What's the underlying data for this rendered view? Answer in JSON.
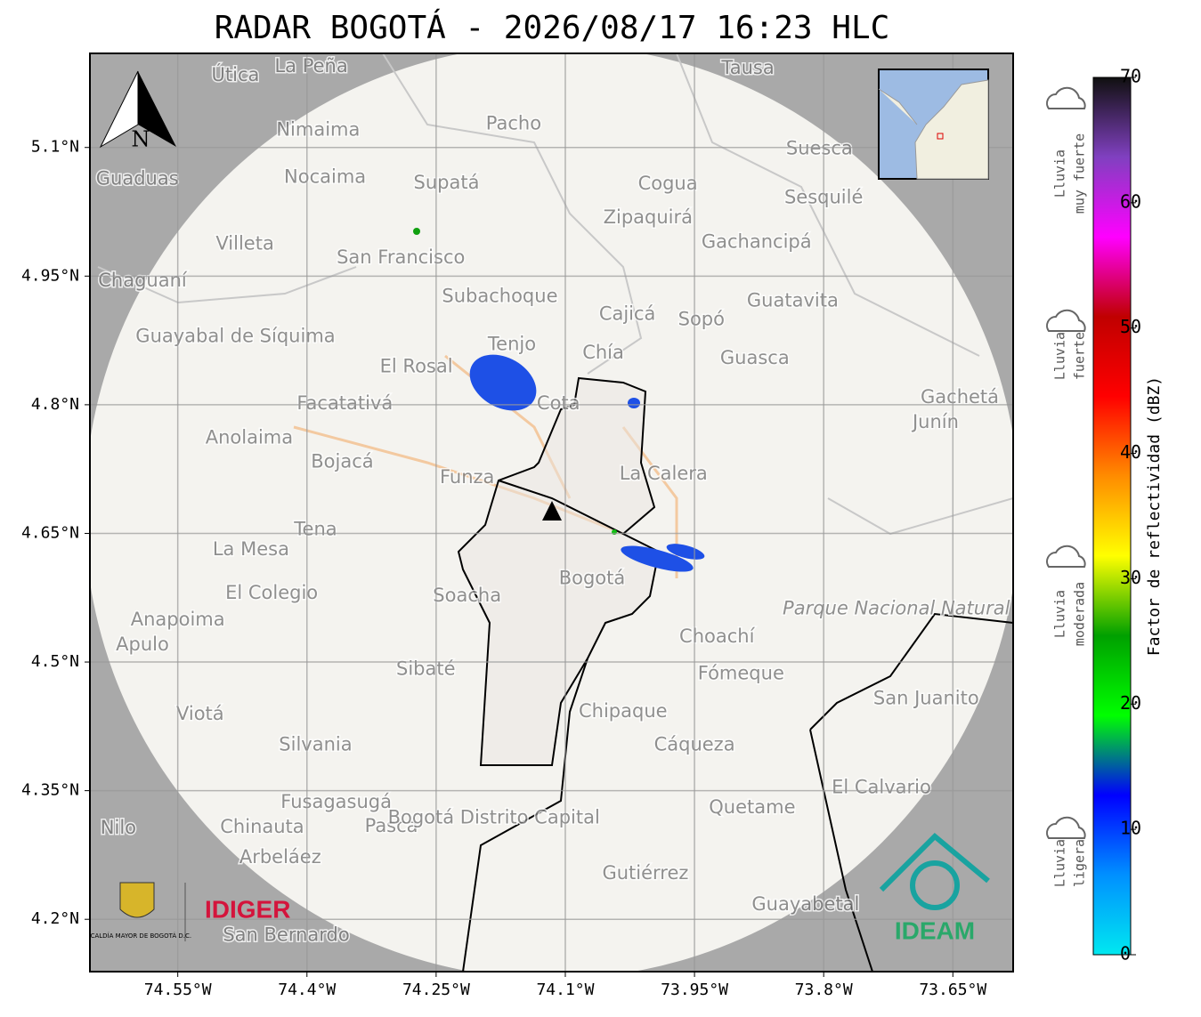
{
  "title": "RADAR BOGOTÁ - 2026/08/17 16:23 HLC",
  "map": {
    "xlim": [
      -74.652,
      -73.58
    ],
    "ylim": [
      4.139,
      5.2097
    ],
    "xticks": [
      {
        "value": -74.55,
        "label": "74.55°W"
      },
      {
        "value": -74.4,
        "label": "74.4°W"
      },
      {
        "value": -74.25,
        "label": "74.25°W"
      },
      {
        "value": -74.1,
        "label": "74.1°W"
      },
      {
        "value": -73.95,
        "label": "73.95°W"
      },
      {
        "value": -73.8,
        "label": "73.8°W"
      },
      {
        "value": -73.65,
        "label": "73.65°W"
      }
    ],
    "yticks": [
      {
        "value": 5.1,
        "label": "5.1°N"
      },
      {
        "value": 4.95,
        "label": "4.95°N"
      },
      {
        "value": 4.8,
        "label": "4.8°N"
      },
      {
        "value": 4.65,
        "label": "4.65°N"
      },
      {
        "value": 4.5,
        "label": "4.5°N"
      },
      {
        "value": 4.35,
        "label": "4.35°N"
      },
      {
        "value": 4.2,
        "label": "4.2°N"
      }
    ],
    "grid": true,
    "compass": "N",
    "places": [
      {
        "name": "La Peña",
        "lon": -74.395,
        "lat": 5.194
      },
      {
        "name": "Útica",
        "lon": -74.483,
        "lat": 5.184
      },
      {
        "name": "Tausa",
        "lon": -73.888,
        "lat": 5.192
      },
      {
        "name": "Pacho",
        "lon": -74.16,
        "lat": 5.127
      },
      {
        "name": "Nimaima",
        "lon": -74.387,
        "lat": 5.12
      },
      {
        "name": "Nocaima",
        "lon": -74.379,
        "lat": 5.065
      },
      {
        "name": "Supatá",
        "lon": -74.238,
        "lat": 5.058
      },
      {
        "name": "Guaduas",
        "lon": -74.597,
        "lat": 5.063
      },
      {
        "name": "Suesca",
        "lon": -73.805,
        "lat": 5.098
      },
      {
        "name": "Cogua",
        "lon": -73.981,
        "lat": 5.057
      },
      {
        "name": "Sesquilé",
        "lon": -73.8,
        "lat": 5.041
      },
      {
        "name": "Zipaquirá",
        "lon": -74.004,
        "lat": 5.018
      },
      {
        "name": "Villeta",
        "lon": -74.472,
        "lat": 4.987
      },
      {
        "name": "San Francisco",
        "lon": -74.291,
        "lat": 4.971
      },
      {
        "name": "Gachancipá",
        "lon": -73.878,
        "lat": 4.989
      },
      {
        "name": "Chaguaní",
        "lon": -74.591,
        "lat": 4.944
      },
      {
        "name": "Subachoque",
        "lon": -74.176,
        "lat": 4.926
      },
      {
        "name": "Guatavita",
        "lon": -73.836,
        "lat": 4.921
      },
      {
        "name": "Cajicá",
        "lon": -74.028,
        "lat": 4.905
      },
      {
        "name": "Sopó",
        "lon": -73.942,
        "lat": 4.899
      },
      {
        "name": "Guayabal de Síquima",
        "lon": -74.483,
        "lat": 4.879
      },
      {
        "name": "Tenjo",
        "lon": -74.162,
        "lat": 4.87
      },
      {
        "name": "Chía",
        "lon": -74.056,
        "lat": 4.86
      },
      {
        "name": "Guasca",
        "lon": -73.88,
        "lat": 4.854
      },
      {
        "name": "El Rosal",
        "lon": -74.273,
        "lat": 4.844
      },
      {
        "name": "Facatativá",
        "lon": -74.356,
        "lat": 4.801
      },
      {
        "name": "Cota",
        "lon": -74.108,
        "lat": 4.801
      },
      {
        "name": "Gachetá",
        "lon": -73.642,
        "lat": 4.808
      },
      {
        "name": "Junín",
        "lon": -73.67,
        "lat": 4.779
      },
      {
        "name": "Anolaima",
        "lon": -74.467,
        "lat": 4.761
      },
      {
        "name": "Bojacá",
        "lon": -74.359,
        "lat": 4.733
      },
      {
        "name": "Funza",
        "lon": -74.214,
        "lat": 4.715
      },
      {
        "name": "La Calera",
        "lon": -73.986,
        "lat": 4.719
      },
      {
        "name": "Tena",
        "lon": -74.39,
        "lat": 4.654
      },
      {
        "name": "La Mesa",
        "lon": -74.465,
        "lat": 4.631
      },
      {
        "name": "Bogotá",
        "lon": -74.069,
        "lat": 4.597
      },
      {
        "name": "Parque Nacional Natural Chingaza",
        "lon": -73.662,
        "lat": 4.562
      },
      {
        "name": "El Colegio",
        "lon": -74.441,
        "lat": 4.58
      },
      {
        "name": "Soacha",
        "lon": -74.214,
        "lat": 4.577
      },
      {
        "name": "Anapoima",
        "lon": -74.55,
        "lat": 4.549
      },
      {
        "name": "Apulo",
        "lon": -74.591,
        "lat": 4.52
      },
      {
        "name": "Choachí",
        "lon": -73.924,
        "lat": 4.529
      },
      {
        "name": "Sibaté",
        "lon": -74.262,
        "lat": 4.491
      },
      {
        "name": "Fómeque",
        "lon": -73.896,
        "lat": 4.486
      },
      {
        "name": "San Juanito",
        "lon": -73.681,
        "lat": 4.457
      },
      {
        "name": "Viotá",
        "lon": -74.524,
        "lat": 4.439
      },
      {
        "name": "Chipaque",
        "lon": -74.033,
        "lat": 4.442
      },
      {
        "name": "Silvania",
        "lon": -74.39,
        "lat": 4.403
      },
      {
        "name": "Cáqueza",
        "lon": -73.95,
        "lat": 4.403
      },
      {
        "name": "El Calvario",
        "lon": -73.733,
        "lat": 4.353
      },
      {
        "name": "Fusagasugá",
        "lon": -74.366,
        "lat": 4.336
      },
      {
        "name": "Quetame",
        "lon": -73.883,
        "lat": 4.33
      },
      {
        "name": "Pasca",
        "lon": -74.302,
        "lat": 4.308
      },
      {
        "name": "Chinauta",
        "lon": -74.452,
        "lat": 4.307
      },
      {
        "name": "Nilo",
        "lon": -74.619,
        "lat": 4.306
      },
      {
        "name": "Arbeláez",
        "lon": -74.431,
        "lat": 4.272
      },
      {
        "name": "Gutiérrez",
        "lon": -74.007,
        "lat": 4.253
      },
      {
        "name": "Guayabetal",
        "lon": -73.821,
        "lat": 4.217
      },
      {
        "name": "San Bernardo",
        "lon": -74.424,
        "lat": 4.181
      },
      {
        "name": "Bogotá Distrito Capital",
        "lon": -74.183,
        "lat": 4.318
      }
    ]
  },
  "logos": {
    "alcaldia": "ALCALDÍA MAYOR DE BOGOTÁ D.C.",
    "idiger": "IDIGER",
    "ideam": "IDEAM"
  },
  "colorbar": {
    "label": "Factor de reflectividad (dBZ)",
    "lim": [
      0,
      70
    ],
    "ticks": [
      0,
      10,
      20,
      30,
      40,
      50,
      60,
      70
    ],
    "colors": [
      "#00e8f0",
      "#0090ff",
      "#0000ff",
      "#00ff00",
      "#00a000",
      "#ffff00",
      "#ff8c00",
      "#ff0000",
      "#c00000",
      "#ff00ff",
      "#8040c0",
      "#101010"
    ]
  },
  "legend": [
    {
      "lines": [
        "Lluvia",
        "muy fuerte"
      ]
    },
    {
      "lines": [
        "Lluvia",
        "fuerte"
      ]
    },
    {
      "lines": [
        "Lluvia",
        "moderada"
      ]
    },
    {
      "lines": [
        "Lluvia",
        "ligera"
      ]
    }
  ]
}
